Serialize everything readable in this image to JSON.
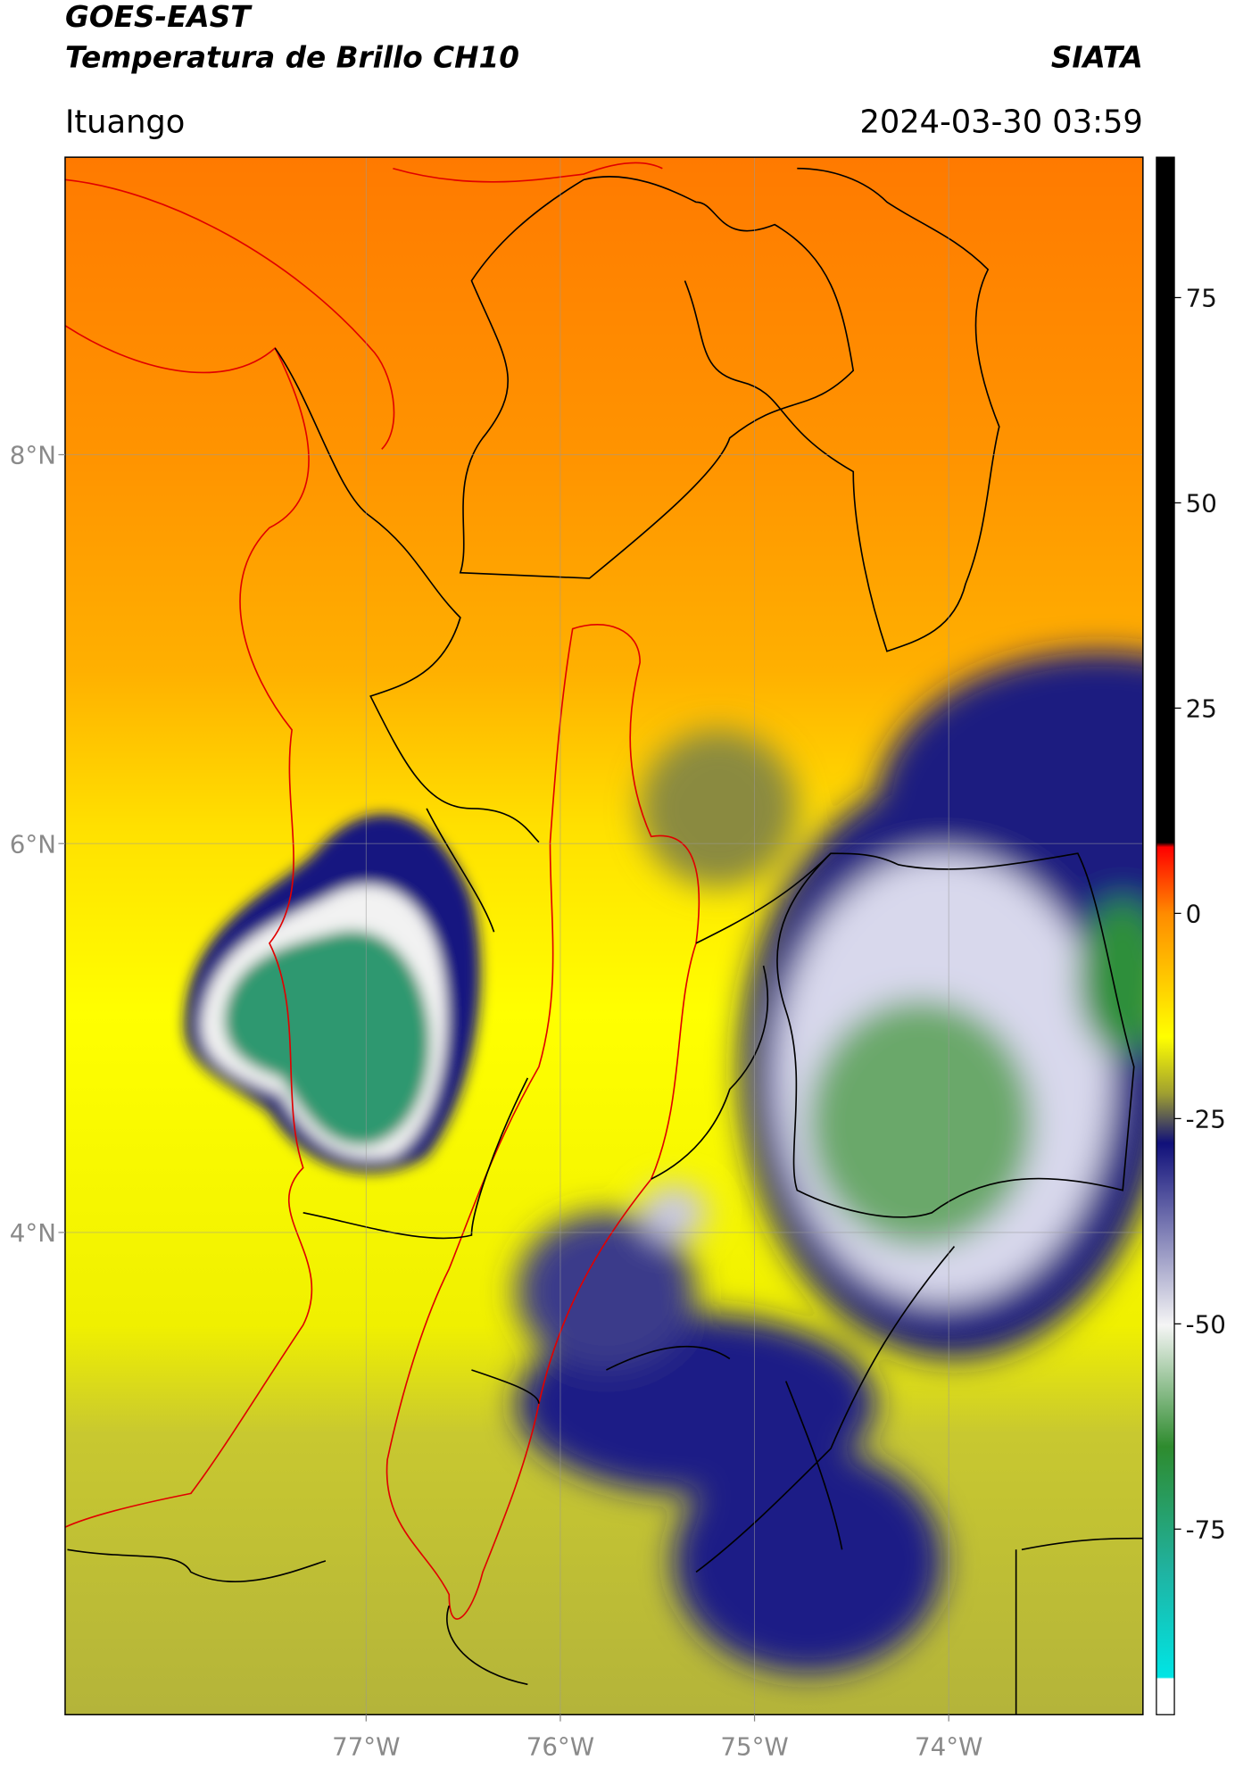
{
  "header": {
    "title": "GOES-EAST",
    "subtitle": "Temperatura de Brillo CH10",
    "source": "SIATA",
    "location": "Ituango",
    "datetime": "2024-03-30 03:59"
  },
  "map": {
    "xlim": [
      -78.55,
      -73.0
    ],
    "ylim": [
      1.52,
      9.53
    ],
    "xticks": [
      {
        "value": -77,
        "label": "77°W"
      },
      {
        "value": -76,
        "label": "76°W"
      },
      {
        "value": -75,
        "label": "75°W"
      },
      {
        "value": -74,
        "label": "74°W"
      }
    ],
    "yticks": [
      {
        "value": 8,
        "label": "8°N"
      },
      {
        "value": 6,
        "label": "6°N"
      },
      {
        "value": 4,
        "label": "4°N"
      }
    ],
    "grid": true
  },
  "colorbar": {
    "lim": [
      -97.6,
      92.1
    ],
    "ticks": [
      75,
      50,
      25,
      0,
      -25,
      -50,
      -75
    ]
  }
}
